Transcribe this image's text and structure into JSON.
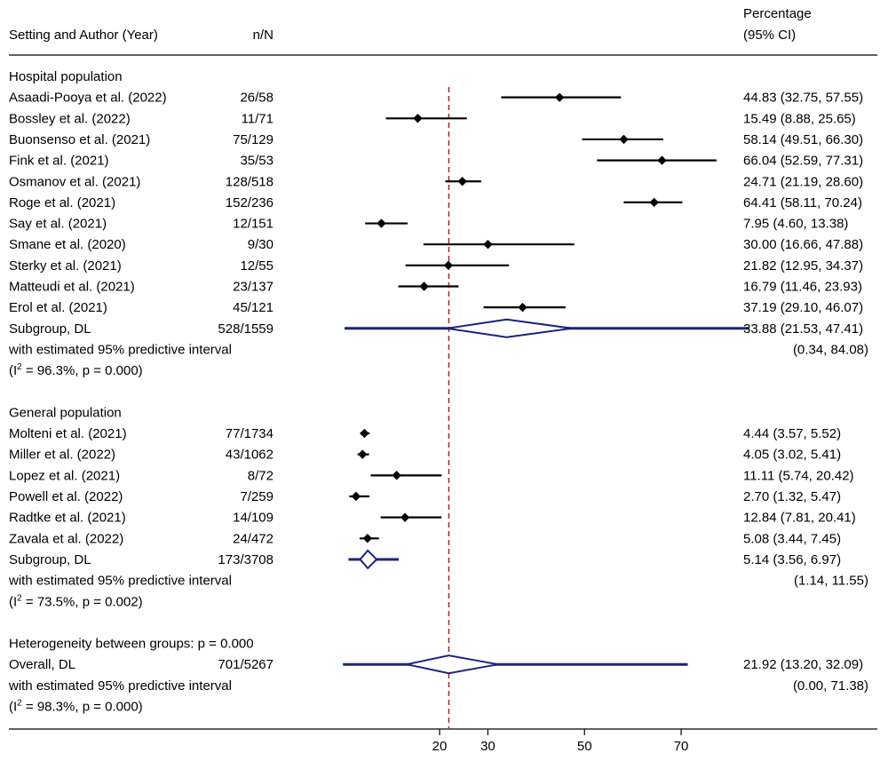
{
  "header": {
    "study_col": "Setting and Author (Year)",
    "n_col": "n/N",
    "pct_col_line1": "Percentage",
    "pct_col_line2": "(95% CI)"
  },
  "chart_data": {
    "type": "forest",
    "xaxis_ticks": [
      20,
      30,
      50,
      70
    ],
    "xlim": [
      -10.7,
      80.1
    ],
    "reference_line": 21.92,
    "colors": {
      "study": "#000000",
      "summary": "#1a237e",
      "reference": "#b22222"
    },
    "groups": [
      {
        "label": "Hospital population",
        "studies": [
          {
            "author": "Asaadi-Pooya et al. (2022)",
            "nN": "26/58",
            "est": 44.83,
            "lo": 32.75,
            "hi": 57.55,
            "ci_text": "44.83 (32.75, 57.55)"
          },
          {
            "author": "Bossley et al. (2022)",
            "nN": "11/71",
            "est": 15.49,
            "lo": 8.88,
            "hi": 25.65,
            "ci_text": "15.49 (8.88, 25.65)"
          },
          {
            "author": "Buonsenso et al. (2021)",
            "nN": "75/129",
            "est": 58.14,
            "lo": 49.51,
            "hi": 66.3,
            "ci_text": "58.14 (49.51, 66.30)"
          },
          {
            "author": "Fink et al. (2021)",
            "nN": "35/53",
            "est": 66.04,
            "lo": 52.59,
            "hi": 77.31,
            "ci_text": "66.04 (52.59, 77.31)"
          },
          {
            "author": "Osmanov et al. (2021)",
            "nN": "128/518",
            "est": 24.71,
            "lo": 21.19,
            "hi": 28.6,
            "ci_text": "24.71 (21.19, 28.60)"
          },
          {
            "author": "Roge et al. (2021)",
            "nN": "152/236",
            "est": 64.41,
            "lo": 58.11,
            "hi": 70.24,
            "ci_text": "64.41 (58.11, 70.24)"
          },
          {
            "author": "Say et al. (2021)",
            "nN": "12/151",
            "est": 7.95,
            "lo": 4.6,
            "hi": 13.38,
            "ci_text": "7.95 (4.60, 13.38)"
          },
          {
            "author": "Smane et al. (2020)",
            "nN": "9/30",
            "est": 30.0,
            "lo": 16.66,
            "hi": 47.88,
            "ci_text": "30.00 (16.66, 47.88)"
          },
          {
            "author": "Sterky et al. (2021)",
            "nN": "12/55",
            "est": 21.82,
            "lo": 12.95,
            "hi": 34.37,
            "ci_text": "21.82 (12.95, 34.37)"
          },
          {
            "author": "Matteudi et al. (2021)",
            "nN": "23/137",
            "est": 16.79,
            "lo": 11.46,
            "hi": 23.93,
            "ci_text": "16.79 (11.46, 23.93)"
          },
          {
            "author": "Erol et al. (2021)",
            "nN": "45/121",
            "est": 37.19,
            "lo": 29.1,
            "hi": 46.07,
            "ci_text": "37.19 (29.10, 46.07)"
          }
        ],
        "subgroup": {
          "label": "Subgroup, DL",
          "nN": "528/1559",
          "est": 33.88,
          "lo": 21.53,
          "hi": 47.41,
          "ci_text": "33.88 (21.53, 47.41)",
          "pi_lo": 0.34,
          "pi_hi": 84.08,
          "pi_label": "with estimated 95% predictive interval",
          "pi_text": "(0.34, 84.08)",
          "i2_value": "96.3%",
          "p_value": "0.000"
        }
      },
      {
        "label": "General population",
        "studies": [
          {
            "author": "Molteni et al. (2021)",
            "nN": "77/1734",
            "est": 4.44,
            "lo": 3.57,
            "hi": 5.52,
            "ci_text": "4.44 (3.57, 5.52)"
          },
          {
            "author": "Miller et al. (2022)",
            "nN": "43/1062",
            "est": 4.05,
            "lo": 3.02,
            "hi": 5.41,
            "ci_text": "4.05 (3.02, 5.41)"
          },
          {
            "author": "Lopez et al. (2021)",
            "nN": "8/72",
            "est": 11.11,
            "lo": 5.74,
            "hi": 20.42,
            "ci_text": "11.11 (5.74, 20.42)"
          },
          {
            "author": "Powell et al. (2022)",
            "nN": "7/259",
            "est": 2.7,
            "lo": 1.32,
            "hi": 5.47,
            "ci_text": "2.70 (1.32, 5.47)"
          },
          {
            "author": "Radtke et al. (2021)",
            "nN": "14/109",
            "est": 12.84,
            "lo": 7.81,
            "hi": 20.41,
            "ci_text": "12.84 (7.81, 20.41)"
          },
          {
            "author": "Zavala et al. (2022)",
            "nN": "24/472",
            "est": 5.08,
            "lo": 3.44,
            "hi": 7.45,
            "ci_text": "5.08 (3.44, 7.45)"
          }
        ],
        "subgroup": {
          "label": "Subgroup, DL",
          "nN": "173/3708",
          "est": 5.14,
          "lo": 3.56,
          "hi": 6.97,
          "ci_text": "5.14 (3.56, 6.97)",
          "pi_lo": 1.14,
          "pi_hi": 11.55,
          "pi_label": "with estimated 95% predictive interval",
          "pi_text": "(1.14, 11.55)",
          "i2_value": "73.5%",
          "p_value": "0.002"
        }
      }
    ],
    "heterogeneity_text": "Heterogeneity between groups: p = 0.000",
    "overall": {
      "label": "Overall, DL",
      "nN": "701/5267",
      "est": 21.92,
      "lo": 13.2,
      "hi": 32.09,
      "ci_text": "21.92 (13.20, 32.09)",
      "pi_lo": 0.0,
      "pi_hi": 71.38,
      "pi_label": "with estimated 95% predictive interval",
      "pi_text": "(0.00, 71.38)",
      "i2_value": "98.3%",
      "p_value": "0.000"
    }
  }
}
